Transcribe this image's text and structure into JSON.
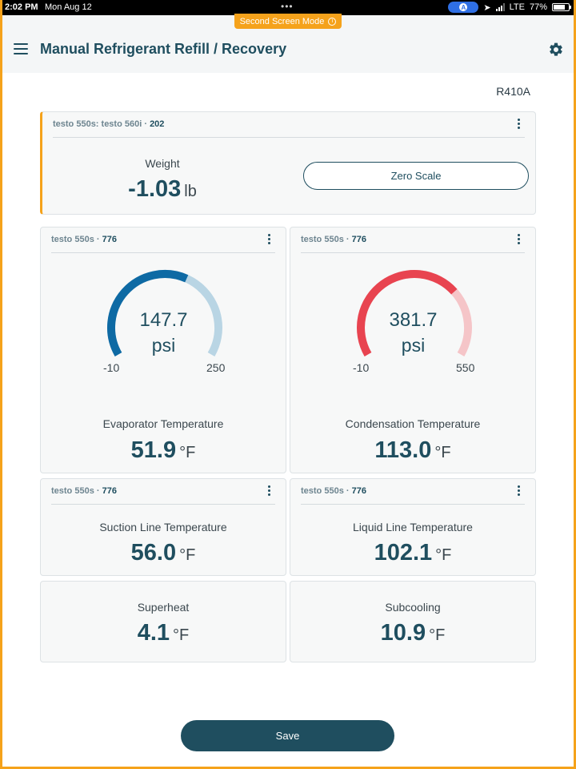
{
  "status_bar": {
    "time": "2:02 PM",
    "date": "Mon Aug 12",
    "assistive_label": "A",
    "network": "LTE",
    "battery": "77%"
  },
  "banner": {
    "label": "Second Screen Mode"
  },
  "header": {
    "title": "Manual Refrigerant Refill / Recovery"
  },
  "refrigerant": "R410A",
  "scale_card": {
    "device": "testo 550s: testo 560i",
    "device_id": "202",
    "label": "Weight",
    "value": "-1.03",
    "unit": "lb",
    "button_label": "Zero Scale"
  },
  "evaporator_card": {
    "device": "testo 550s",
    "device_id": "776",
    "gauge": {
      "value": "147.7",
      "unit": "psi",
      "min": "-10",
      "max": "250",
      "fill_fraction": 0.6,
      "color": "#0e6aa4",
      "track_color": "#b9d5e4"
    },
    "label": "Evaporator Temperature",
    "value": "51.9",
    "unit": "°F"
  },
  "condensation_card": {
    "device": "testo 550s",
    "device_id": "776",
    "gauge": {
      "value": "381.7",
      "unit": "psi",
      "min": "-10",
      "max": "550",
      "fill_fraction": 0.7,
      "color": "#e84450",
      "track_color": "#f5c5c8"
    },
    "label": "Condensation Temperature",
    "value": "113.0",
    "unit": "°F"
  },
  "suction_card": {
    "device": "testo 550s",
    "device_id": "776",
    "label": "Suction Line Temperature",
    "value": "56.0",
    "unit": "°F"
  },
  "liquid_card": {
    "device": "testo 550s",
    "device_id": "776",
    "label": "Liquid Line Temperature",
    "value": "102.1",
    "unit": "°F"
  },
  "superheat_card": {
    "label": "Superheat",
    "value": "4.1",
    "unit": "°F"
  },
  "subcooling_card": {
    "label": "Subcooling",
    "value": "10.9",
    "unit": "°F"
  },
  "save_label": "Save",
  "icons": {
    "menu": "hamburger-icon",
    "settings": "gear-icon",
    "more": "kebab-icon",
    "info": "info-icon"
  },
  "colors": {
    "accent": "#f5a21b",
    "primary": "#1f4e5f"
  }
}
